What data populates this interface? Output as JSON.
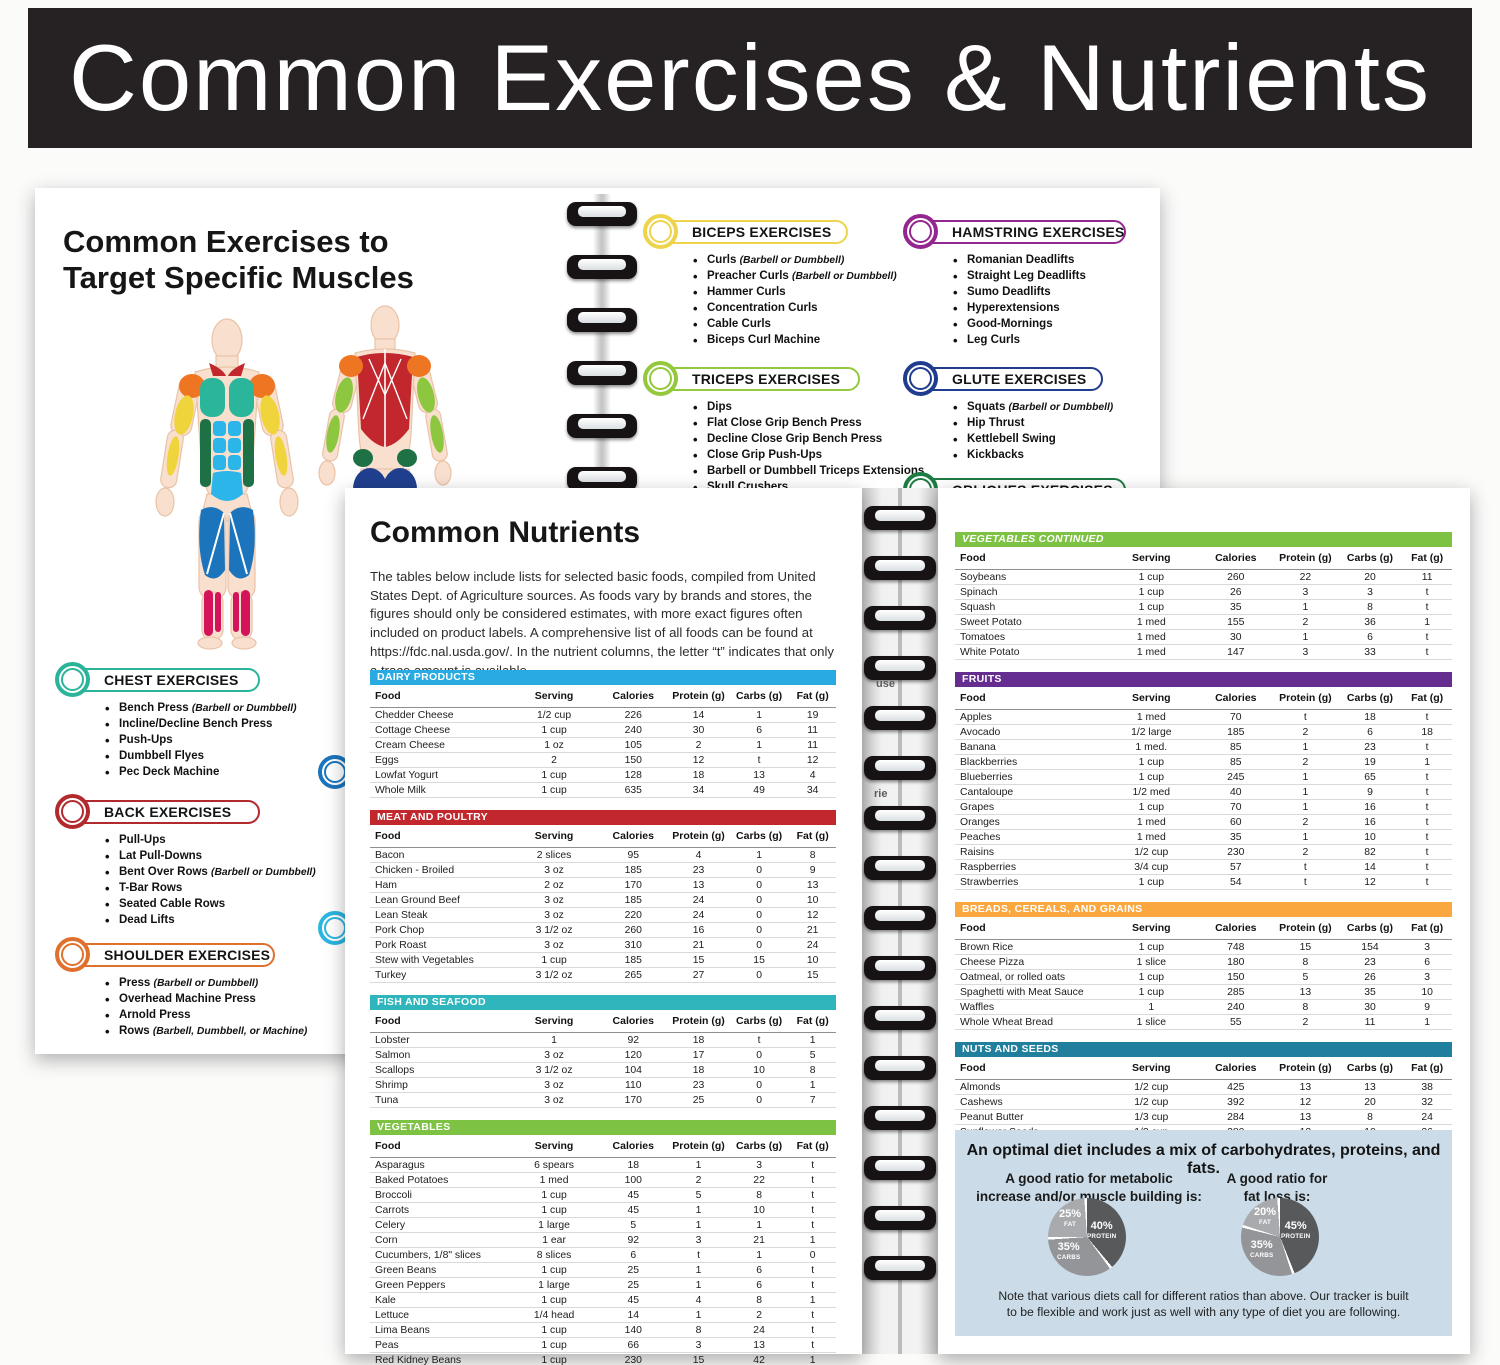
{
  "banner": {
    "title": "Common Exercises & Nutrients"
  },
  "exercises_page": {
    "title_line1": "Common Exercises to",
    "title_line2": "Target Specific Muscles",
    "sections": [
      {
        "id": "chest",
        "label": "CHEST EXERCISES",
        "color": "#2CB49B",
        "items": [
          {
            "text": "Bench Press",
            "note": "(Barbell or Dumbbell)"
          },
          {
            "text": "Incline/Decline Bench Press"
          },
          {
            "text": "Push-Ups"
          },
          {
            "text": "Dumbbell Flyes"
          },
          {
            "text": "Pec Deck Machine"
          }
        ]
      },
      {
        "id": "back",
        "label": "BACK EXERCISES",
        "color": "#B2292E",
        "items": [
          {
            "text": "Pull-Ups"
          },
          {
            "text": "Lat Pull-Downs"
          },
          {
            "text": "Bent Over Rows",
            "note": "(Barbell or Dumbbell)"
          },
          {
            "text": "T-Bar Rows"
          },
          {
            "text": "Seated Cable Rows"
          },
          {
            "text": "Dead Lifts"
          }
        ]
      },
      {
        "id": "shoulder",
        "label": "SHOULDER EXERCISES",
        "color": "#E0702E",
        "items": [
          {
            "text": "Press",
            "note": "(Barbell or Dumbbell)"
          },
          {
            "text": "Overhead Machine Press"
          },
          {
            "text": "Arnold Press"
          },
          {
            "text": "Rows",
            "note": "(Barbell, Dumbbell, or Machine)"
          }
        ]
      },
      {
        "id": "biceps",
        "label": "BICEPS EXERCISES",
        "color": "#EDD44C",
        "items": [
          {
            "text": "Curls",
            "note": "(Barbell or Dumbbell)"
          },
          {
            "text": "Preacher Curls",
            "note": "(Barbell or Dumbbell)"
          },
          {
            "text": "Hammer Curls"
          },
          {
            "text": "Concentration Curls"
          },
          {
            "text": "Cable Curls"
          },
          {
            "text": "Biceps Curl Machine"
          }
        ]
      },
      {
        "id": "triceps",
        "label": "TRICEPS EXERCISES",
        "color": "#94C83D",
        "items": [
          {
            "text": "Dips"
          },
          {
            "text": "Flat Close Grip Bench Press"
          },
          {
            "text": "Decline Close Grip Bench Press"
          },
          {
            "text": "Close Grip Push-Ups"
          },
          {
            "text": "Barbell or Dumbbell Triceps Extensions"
          },
          {
            "text": "Skull Crushers"
          }
        ]
      },
      {
        "id": "hamstring",
        "label": "HAMSTRING EXERCISES",
        "color": "#93278F",
        "items": [
          {
            "text": "Romanian Deadlifts"
          },
          {
            "text": "Straight Leg Deadlifts"
          },
          {
            "text": "Sumo Deadlifts"
          },
          {
            "text": "Hyperextensions"
          },
          {
            "text": "Good-Mornings"
          },
          {
            "text": "Leg Curls"
          }
        ]
      },
      {
        "id": "glute",
        "label": "GLUTE EXERCISES",
        "color": "#1F3C8F",
        "items": [
          {
            "text": "Squats",
            "note": "(Barbell or Dumbbell)"
          },
          {
            "text": "Hip Thrust"
          },
          {
            "text": "Kettlebell Swing"
          },
          {
            "text": "Kickbacks"
          }
        ]
      },
      {
        "id": "obliques",
        "label": "OBLIQUES EXERCISES",
        "color": "#1E7B44",
        "items": []
      }
    ]
  },
  "booklet": {
    "gutter_fragments": [
      "use",
      "rie"
    ]
  },
  "nutrients": {
    "title": "Common Nutrients",
    "intro": "The tables below include lists for selected basic foods, compiled from United States Dept. of Agriculture sources. As foods vary by brands and stores, the figures should only be considered estimates, with more exact figures often included on product labels. A comprehensive list of all foods can be found at https://fdc.nal.usda.gov/. In the nutrient columns, the letter “t” indicates that only a trace amount is available.",
    "columns": [
      "Food",
      "Serving",
      "Calories",
      "Protein (g)",
      "Carbs (g)",
      "Fat (g)"
    ],
    "tables": [
      {
        "id": "dairy-products",
        "name": "DAIRY PRODUCTS",
        "color": "#29ABE2",
        "page": "left",
        "italic": false,
        "rows": [
          [
            "Chedder Cheese",
            "1/2 cup",
            "226",
            "14",
            "1",
            "19"
          ],
          [
            "Cottage Cheese",
            "1 cup",
            "240",
            "30",
            "6",
            "11"
          ],
          [
            "Cream Cheese",
            "1 oz",
            "105",
            "2",
            "1",
            "11"
          ],
          [
            "Eggs",
            "2",
            "150",
            "12",
            "t",
            "12"
          ],
          [
            "Lowfat Yogurt",
            "1 cup",
            "128",
            "18",
            "13",
            "4"
          ],
          [
            "Whole Milk",
            "1 cup",
            "635",
            "34",
            "49",
            "34"
          ]
        ]
      },
      {
        "id": "meat-and-poultry",
        "name": "MEAT AND POULTRY",
        "color": "#C1272D",
        "page": "left",
        "italic": false,
        "rows": [
          [
            "Bacon",
            "2 slices",
            "95",
            "4",
            "1",
            "8"
          ],
          [
            "Chicken - Broiled",
            "3 oz",
            "185",
            "23",
            "0",
            "9"
          ],
          [
            "Ham",
            "2 oz",
            "170",
            "13",
            "0",
            "13"
          ],
          [
            "Lean Ground Beef",
            "3 oz",
            "185",
            "24",
            "0",
            "10"
          ],
          [
            "Lean Steak",
            "3 oz",
            "220",
            "24",
            "0",
            "12"
          ],
          [
            "Pork Chop",
            "3 1/2 oz",
            "260",
            "16",
            "0",
            "21"
          ],
          [
            "Pork Roast",
            "3 oz",
            "310",
            "21",
            "0",
            "24"
          ],
          [
            "Stew with Vegetables",
            "1 cup",
            "185",
            "15",
            "15",
            "10"
          ],
          [
            "Turkey",
            "3 1/2 oz",
            "265",
            "27",
            "0",
            "15"
          ]
        ]
      },
      {
        "id": "fish-and-seafood",
        "name": "FISH AND SEAFOOD",
        "color": "#2FB6BC",
        "page": "left",
        "italic": false,
        "rows": [
          [
            "Lobster",
            "1",
            "92",
            "18",
            "t",
            "1"
          ],
          [
            "Salmon",
            "3 oz",
            "120",
            "17",
            "0",
            "5"
          ],
          [
            "Scallops",
            "3 1/2 oz",
            "104",
            "18",
            "10",
            "8"
          ],
          [
            "Shrimp",
            "3 oz",
            "110",
            "23",
            "0",
            "1"
          ],
          [
            "Tuna",
            "3 oz",
            "170",
            "25",
            "0",
            "7"
          ]
        ]
      },
      {
        "id": "vegetables",
        "name": "VEGETABLES",
        "color": "#7DC242",
        "page": "left",
        "italic": false,
        "rows": [
          [
            "Asparagus",
            "6 spears",
            "18",
            "1",
            "3",
            "t"
          ],
          [
            "Baked Potatoes",
            "1 med",
            "100",
            "2",
            "22",
            "t"
          ],
          [
            "Broccoli",
            "1 cup",
            "45",
            "5",
            "8",
            "t"
          ],
          [
            "Carrots",
            "1 cup",
            "45",
            "1",
            "10",
            "t"
          ],
          [
            "Celery",
            "1 large",
            "5",
            "1",
            "1",
            "t"
          ],
          [
            "Corn",
            "1 ear",
            "92",
            "3",
            "21",
            "1"
          ],
          [
            "Cucumbers, 1/8\" slices",
            "8 slices",
            "6",
            "t",
            "1",
            "0"
          ],
          [
            "Green Beans",
            "1 cup",
            "25",
            "1",
            "6",
            "t"
          ],
          [
            "Green Peppers",
            "1 large",
            "25",
            "1",
            "6",
            "t"
          ],
          [
            "Kale",
            "1 cup",
            "45",
            "4",
            "8",
            "1"
          ],
          [
            "Lettuce",
            "1/4 head",
            "14",
            "1",
            "2",
            "t"
          ],
          [
            "Lima Beans",
            "1 cup",
            "140",
            "8",
            "24",
            "t"
          ],
          [
            "Peas",
            "1 cup",
            "66",
            "3",
            "13",
            "t"
          ],
          [
            "Red Kidney Beans",
            "1 cup",
            "230",
            "15",
            "42",
            "1"
          ]
        ]
      },
      {
        "id": "vegetables-continued",
        "name": "VEGETABLES CONTINUED",
        "color": "#7DC242",
        "page": "right",
        "italic": true,
        "rows": [
          [
            "Soybeans",
            "1 cup",
            "260",
            "22",
            "20",
            "11"
          ],
          [
            "Spinach",
            "1 cup",
            "26",
            "3",
            "3",
            "t"
          ],
          [
            "Squash",
            "1 cup",
            "35",
            "1",
            "8",
            "t"
          ],
          [
            "Sweet Potato",
            "1 med",
            "155",
            "2",
            "36",
            "1"
          ],
          [
            "Tomatoes",
            "1 med",
            "30",
            "1",
            "6",
            "t"
          ],
          [
            "White Potato",
            "1 med",
            "147",
            "3",
            "33",
            "t"
          ]
        ]
      },
      {
        "id": "fruits",
        "name": "FRUITS",
        "color": "#662D91",
        "page": "right",
        "italic": false,
        "rows": [
          [
            "Apples",
            "1 med",
            "70",
            "t",
            "18",
            "t"
          ],
          [
            "Avocado",
            "1/2 large",
            "185",
            "2",
            "6",
            "18"
          ],
          [
            "Banana",
            "1 med.",
            "85",
            "1",
            "23",
            "t"
          ],
          [
            "Blackberries",
            "1 cup",
            "85",
            "2",
            "19",
            "1"
          ],
          [
            "Blueberries",
            "1 cup",
            "245",
            "1",
            "65",
            "t"
          ],
          [
            "Cantaloupe",
            "1/2 med",
            "40",
            "1",
            "9",
            "t"
          ],
          [
            "Grapes",
            "1 cup",
            "70",
            "1",
            "16",
            "t"
          ],
          [
            "Oranges",
            "1 med",
            "60",
            "2",
            "16",
            "t"
          ],
          [
            "Peaches",
            "1 med",
            "35",
            "1",
            "10",
            "t"
          ],
          [
            "Raisins",
            "1/2 cup",
            "230",
            "2",
            "82",
            "t"
          ],
          [
            "Raspberries",
            "3/4 cup",
            "57",
            "t",
            "14",
            "t"
          ],
          [
            "Strawberries",
            "1 cup",
            "54",
            "t",
            "12",
            "t"
          ]
        ]
      },
      {
        "id": "breads-cereals-grains",
        "name": "BREADS, CEREALS, AND GRAINS",
        "color": "#F9A73E",
        "page": "right",
        "italic": false,
        "rows": [
          [
            "Brown Rice",
            "1 cup",
            "748",
            "15",
            "154",
            "3"
          ],
          [
            "Cheese Pizza",
            "1 slice",
            "180",
            "8",
            "23",
            "6"
          ],
          [
            "Oatmeal, or rolled oats",
            "1 cup",
            "150",
            "5",
            "26",
            "3"
          ],
          [
            "Spaghetti with Meat Sauce",
            "1 cup",
            "285",
            "13",
            "35",
            "10"
          ],
          [
            "Waffles",
            "1",
            "240",
            "8",
            "30",
            "9"
          ],
          [
            "Whole Wheat Bread",
            "1 slice",
            "55",
            "2",
            "11",
            "1"
          ]
        ]
      },
      {
        "id": "nuts-and-seeds",
        "name": "NUTS AND SEEDS",
        "color": "#1F7F9C",
        "page": "right",
        "italic": false,
        "rows": [
          [
            "Almonds",
            "1/2 cup",
            "425",
            "13",
            "13",
            "38"
          ],
          [
            "Cashews",
            "1/2 cup",
            "392",
            "12",
            "20",
            "32"
          ],
          [
            "Peanut Butter",
            "1/3 cup",
            "284",
            "13",
            "8",
            "24"
          ],
          [
            "Sunflower Seeds",
            "1/2 cup",
            "280",
            "12",
            "10",
            "26"
          ]
        ]
      }
    ],
    "diet_box": {
      "heading": "An optimal diet includes a mix of carbohydrates, proteins, and fats.",
      "captions": [
        {
          "line1": "A good ratio for metabolic",
          "line2": "increase and/or muscle building is:"
        },
        {
          "line1": "A good ratio for",
          "line2": "fat loss is:"
        }
      ],
      "note_line1": "Note that various diets call for different ratios than above. Our tracker is built",
      "note_line2": "to be flexible and work just as well with any type of diet you are following."
    }
  },
  "chart_data": [
    {
      "type": "pie",
      "title": "A good ratio for metabolic increase and/or muscle building is:",
      "slices": [
        {
          "label": "PROTEIN",
          "value": 40,
          "color": "#58595B"
        },
        {
          "label": "CARBS",
          "value": 35,
          "color": "#939598"
        },
        {
          "label": "FAT",
          "value": 25,
          "color": "#A8AAAD"
        }
      ]
    },
    {
      "type": "pie",
      "title": "A good ratio for fat loss is:",
      "slices": [
        {
          "label": "PROTEIN",
          "value": 45,
          "color": "#58595B"
        },
        {
          "label": "CARBS",
          "value": 35,
          "color": "#939598"
        },
        {
          "label": "FAT",
          "value": 20,
          "color": "#A8AAAD"
        }
      ]
    }
  ]
}
